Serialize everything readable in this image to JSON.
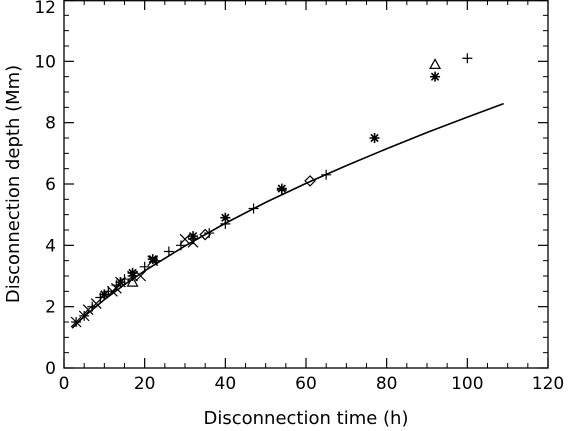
{
  "chart_data": {
    "type": "scatter",
    "title": "",
    "xlabel": "Disconnection time (h)",
    "ylabel": "Disconnection depth (Mm)",
    "xlim": [
      0,
      120
    ],
    "ylim": [
      0,
      12
    ],
    "xticks": [
      0,
      20,
      40,
      60,
      80,
      100,
      120
    ],
    "yticks": [
      0,
      2,
      4,
      6,
      8,
      10,
      12
    ],
    "grid": false,
    "legend": "none",
    "series": [
      {
        "marker": "plus",
        "points": [
          [
            3,
            1.5
          ],
          [
            5,
            1.7
          ],
          [
            7,
            2.0
          ],
          [
            9,
            2.3
          ],
          [
            11,
            2.5
          ],
          [
            13,
            2.7
          ],
          [
            15,
            2.9
          ],
          [
            17,
            3.0
          ],
          [
            20,
            3.3
          ],
          [
            23,
            3.5
          ],
          [
            26,
            3.8
          ],
          [
            29,
            4.0
          ],
          [
            32,
            4.2
          ],
          [
            36,
            4.4
          ],
          [
            40,
            4.7
          ],
          [
            47,
            5.2
          ],
          [
            54,
            5.8
          ],
          [
            65,
            6.3
          ],
          [
            100,
            10.1
          ]
        ]
      },
      {
        "marker": "cross",
        "points": [
          [
            3,
            1.5
          ],
          [
            5,
            1.7
          ],
          [
            6,
            1.9
          ],
          [
            8,
            2.1
          ],
          [
            12,
            2.5
          ],
          [
            13,
            2.6
          ],
          [
            14,
            2.8
          ],
          [
            17,
            3.0
          ],
          [
            19,
            3.0
          ],
          [
            22,
            3.5
          ],
          [
            30,
            4.2
          ],
          [
            32,
            4.1
          ]
        ]
      },
      {
        "marker": "asterisk",
        "points": [
          [
            10,
            2.4
          ],
          [
            14,
            2.8
          ],
          [
            17,
            3.1
          ],
          [
            22,
            3.55
          ],
          [
            32,
            4.3
          ],
          [
            40,
            4.9
          ],
          [
            54,
            5.85
          ],
          [
            77,
            7.5
          ],
          [
            92,
            9.5
          ]
        ]
      },
      {
        "marker": "diamond",
        "points": [
          [
            35,
            4.35
          ],
          [
            61,
            6.1
          ]
        ]
      },
      {
        "marker": "triangle",
        "points": [
          [
            17,
            2.8
          ],
          [
            92,
            9.9
          ]
        ]
      },
      {
        "marker": "line",
        "points": [
          [
            2,
            1.3
          ],
          [
            5,
            1.68
          ],
          [
            10,
            2.23
          ],
          [
            15,
            2.72
          ],
          [
            20,
            3.17
          ],
          [
            30,
            3.98
          ],
          [
            40,
            4.72
          ],
          [
            50,
            5.4
          ],
          [
            60,
            6.02
          ],
          [
            70,
            6.6
          ],
          [
            80,
            7.15
          ],
          [
            90,
            7.68
          ],
          [
            100,
            8.18
          ],
          [
            109,
            8.62
          ]
        ]
      }
    ]
  }
}
